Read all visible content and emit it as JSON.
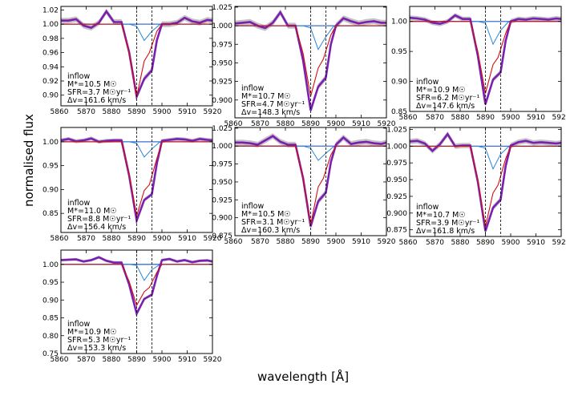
{
  "figure": {
    "xlabel": "wavelength [Å]",
    "ylabel": "normalised flux"
  },
  "chart_data": [
    {
      "type": "line",
      "xlim": [
        5860,
        5920
      ],
      "ylim": [
        0.885,
        1.025
      ],
      "xticks": [
        5860,
        5870,
        5880,
        5890,
        5900,
        5910,
        5920
      ],
      "yticks": [
        0.9,
        0.92,
        0.94,
        0.96,
        0.98,
        1.0,
        1.02
      ],
      "ytick_labels": [
        "0.90",
        "0.92",
        "0.94",
        "0.96",
        "0.98",
        "1.00",
        "1.02"
      ],
      "vlines": [
        5890,
        5896
      ],
      "annotation": [
        "inflow",
        "M*=10.5 M☉",
        "SFR=3.7 M☉yr⁻¹",
        "Δv=161.6 km/s"
      ],
      "depth": {
        "black": 0.898,
        "purple": 0.898,
        "red": 0.898,
        "blue": 0.977
      },
      "shoulder": {
        "black": 0.935,
        "purple": 0.935,
        "red": 0.96,
        "blue": 0.99
      },
      "continuum": [
        1.005,
        1.005,
        1.007,
        0.998,
        0.995,
        1.002,
        1.018,
        1.003,
        1.0,
        1.0,
        1.002,
        1.009,
        1.004,
        1.002,
        1.006,
        1.005
      ],
      "continuum_x": [
        5860,
        5863,
        5866,
        5869,
        5872,
        5875,
        5878,
        5881,
        5900,
        5903,
        5906,
        5909,
        5912,
        5915,
        5918,
        5920
      ]
    },
    {
      "type": "line",
      "xlim": [
        5860,
        5920
      ],
      "ylim": [
        0.876,
        1.026
      ],
      "xticks": [
        5860,
        5870,
        5880,
        5890,
        5900,
        5910,
        5920
      ],
      "yticks": [
        0.875,
        0.9,
        0.925,
        0.95,
        0.975,
        1.0,
        1.025
      ],
      "ytick_labels": [
        "0.875",
        "0.900",
        "0.925",
        "0.950",
        "0.975",
        "1.000",
        "1.025"
      ],
      "vlines": [
        5890,
        5896
      ],
      "annotation": [
        "inflow",
        "M*=10.7 M☉",
        "SFR=4.7 M☉yr⁻¹",
        "Δv=148.3 km/s"
      ],
      "depth": {
        "black": 0.886,
        "purple": 0.886,
        "red": 0.905,
        "blue": 0.968
      },
      "shoulder": {
        "black": 0.93,
        "purple": 0.93,
        "red": 0.955,
        "blue": 0.985
      },
      "continuum": [
        1.003,
        1.004,
        1.005,
        1.0,
        0.997,
        1.004,
        1.018,
        1.0,
        1.0,
        1.01,
        1.006,
        1.003,
        1.005,
        1.006,
        1.004,
        1.004
      ],
      "continuum_x": [
        5860,
        5863,
        5866,
        5869,
        5872,
        5875,
        5878,
        5881,
        5900,
        5903,
        5906,
        5909,
        5912,
        5915,
        5918,
        5920
      ]
    },
    {
      "type": "line",
      "xlim": [
        5860,
        5920
      ],
      "ylim": [
        0.85,
        1.025
      ],
      "xticks": [
        5860,
        5870,
        5880,
        5890,
        5900,
        5910,
        5920
      ],
      "yticks": [
        0.85,
        0.9,
        0.95,
        1.0
      ],
      "ytick_labels": [
        "0.85",
        "0.90",
        "0.95",
        "1.00"
      ],
      "vlines": [
        5890,
        5896
      ],
      "annotation": [
        "inflow",
        "M*=10.9 M☉",
        "SFR=6.2 M☉yr⁻¹",
        "Δv=147.6 km/s"
      ],
      "depth": {
        "black": 0.862,
        "purple": 0.862,
        "red": 0.88,
        "blue": 0.962
      },
      "shoulder": {
        "black": 0.915,
        "purple": 0.915,
        "red": 0.94,
        "blue": 0.985
      },
      "continuum": [
        1.006,
        1.005,
        1.003,
        0.998,
        0.996,
        1.0,
        1.01,
        1.004,
        1.0,
        1.004,
        1.003,
        1.005,
        1.004,
        1.003,
        1.005,
        1.004
      ],
      "continuum_x": [
        5860,
        5863,
        5866,
        5869,
        5872,
        5875,
        5878,
        5881,
        5900,
        5903,
        5906,
        5909,
        5912,
        5915,
        5918,
        5920
      ]
    },
    {
      "type": "line",
      "xlim": [
        5860,
        5920
      ],
      "ylim": [
        0.81,
        1.03
      ],
      "xticks": [
        5860,
        5870,
        5880,
        5890,
        5900,
        5910,
        5920
      ],
      "yticks": [
        0.85,
        0.9,
        0.95,
        1.0
      ],
      "ytick_labels": [
        "0.85",
        "0.90",
        "0.95",
        "1.00"
      ],
      "vlines": [
        5890,
        5896
      ],
      "annotation": [
        "inflow",
        "M*=11.0 M☉",
        "SFR=8.8 M☉yr⁻¹",
        "Δv=156.4 km/s"
      ],
      "depth": {
        "black": 0.835,
        "purple": 0.835,
        "red": 0.845,
        "blue": 0.968
      },
      "shoulder": {
        "black": 0.89,
        "purple": 0.89,
        "red": 0.91,
        "blue": 0.985
      },
      "continuum": [
        1.003,
        1.006,
        1.001,
        1.003,
        1.007,
        1.0,
        1.002,
        1.003,
        1.002,
        1.004,
        1.006,
        1.005,
        1.002,
        1.006,
        1.004,
        1.003
      ],
      "continuum_x": [
        5860,
        5863,
        5866,
        5869,
        5872,
        5875,
        5878,
        5881,
        5900,
        5903,
        5906,
        5909,
        5912,
        5915,
        5918,
        5920
      ]
    },
    {
      "type": "line",
      "xlim": [
        5860,
        5920
      ],
      "ylim": [
        0.875,
        1.026
      ],
      "xticks": [
        5860,
        5870,
        5880,
        5890,
        5900,
        5910,
        5920
      ],
      "yticks": [
        0.875,
        0.9,
        0.925,
        0.95,
        0.975,
        1.0,
        1.025
      ],
      "ytick_labels": [
        "0.875",
        "0.900",
        "0.925",
        "0.950",
        "0.975",
        "1.000",
        "1.025"
      ],
      "vlines": [
        5890,
        5896
      ],
      "annotation": [
        "inflow",
        "M*=10.5 M☉",
        "SFR=3.1 M☉yr⁻¹",
        "Δv=160.3 km/s"
      ],
      "depth": {
        "black": 0.888,
        "purple": 0.888,
        "red": 0.89,
        "blue": 0.98
      },
      "shoulder": {
        "black": 0.935,
        "purple": 0.935,
        "red": 0.955,
        "blue": 0.99
      },
      "continuum": [
        1.005,
        1.005,
        1.004,
        1.002,
        1.008,
        1.014,
        1.006,
        1.002,
        1.002,
        1.012,
        1.003,
        1.005,
        1.006,
        1.004,
        1.003,
        1.005
      ],
      "continuum_x": [
        5860,
        5863,
        5866,
        5869,
        5872,
        5875,
        5878,
        5881,
        5900,
        5903,
        5906,
        5909,
        5912,
        5915,
        5918,
        5920
      ]
    },
    {
      "type": "line",
      "xlim": [
        5860,
        5920
      ],
      "ylim": [
        0.865,
        1.028
      ],
      "xticks": [
        5860,
        5870,
        5880,
        5890,
        5900,
        5910,
        5920
      ],
      "yticks": [
        0.875,
        0.9,
        0.925,
        0.95,
        0.975,
        1.0,
        1.025
      ],
      "ytick_labels": [
        "0.875",
        "0.900",
        "0.925",
        "0.950",
        "0.975",
        "1.000",
        "1.025"
      ],
      "vlines": [
        5890,
        5896
      ],
      "annotation": [
        "inflow",
        "M*=10.7 M☉",
        "SFR=3.9 M☉yr⁻¹",
        "Δv=161.8 km/s"
      ],
      "depth": {
        "black": 0.873,
        "purple": 0.873,
        "red": 0.88,
        "blue": 0.966
      },
      "shoulder": {
        "black": 0.92,
        "purple": 0.92,
        "red": 0.942,
        "blue": 0.988
      },
      "continuum": [
        1.007,
        1.008,
        1.004,
        0.993,
        1.003,
        1.018,
        1.0,
        1.001,
        1.001,
        1.006,
        1.008,
        1.005,
        1.006,
        1.005,
        1.004,
        1.005
      ],
      "continuum_x": [
        5860,
        5863,
        5866,
        5869,
        5872,
        5875,
        5878,
        5881,
        5900,
        5903,
        5906,
        5909,
        5912,
        5915,
        5918,
        5920
      ]
    },
    {
      "type": "line",
      "xlim": [
        5860,
        5920
      ],
      "ylim": [
        0.75,
        1.04
      ],
      "xticks": [
        5860,
        5870,
        5880,
        5890,
        5900,
        5910,
        5920
      ],
      "yticks": [
        0.75,
        0.8,
        0.85,
        0.9,
        0.95,
        1.0
      ],
      "ytick_labels": [
        "0.75",
        "0.80",
        "0.85",
        "0.90",
        "0.95",
        "1.00"
      ],
      "vlines": [
        5890,
        5896
      ],
      "annotation": [
        "inflow",
        "M*=10.9 M☉",
        "SFR=5.3 M☉yr⁻¹",
        "Δv=153.3 km/s"
      ],
      "depth": {
        "black": 0.862,
        "purple": 0.862,
        "red": 0.885,
        "blue": 0.955
      },
      "shoulder": {
        "black": 0.915,
        "purple": 0.915,
        "red": 0.935,
        "blue": 0.985
      },
      "continuum": [
        1.012,
        1.013,
        1.014,
        1.008,
        1.012,
        1.02,
        1.01,
        1.005,
        1.012,
        1.015,
        1.008,
        1.012,
        1.006,
        1.01,
        1.011,
        1.008
      ],
      "continuum_x": [
        5860,
        5863,
        5866,
        5869,
        5872,
        5875,
        5878,
        5881,
        5900,
        5903,
        5906,
        5909,
        5912,
        5915,
        5918,
        5920
      ]
    }
  ]
}
